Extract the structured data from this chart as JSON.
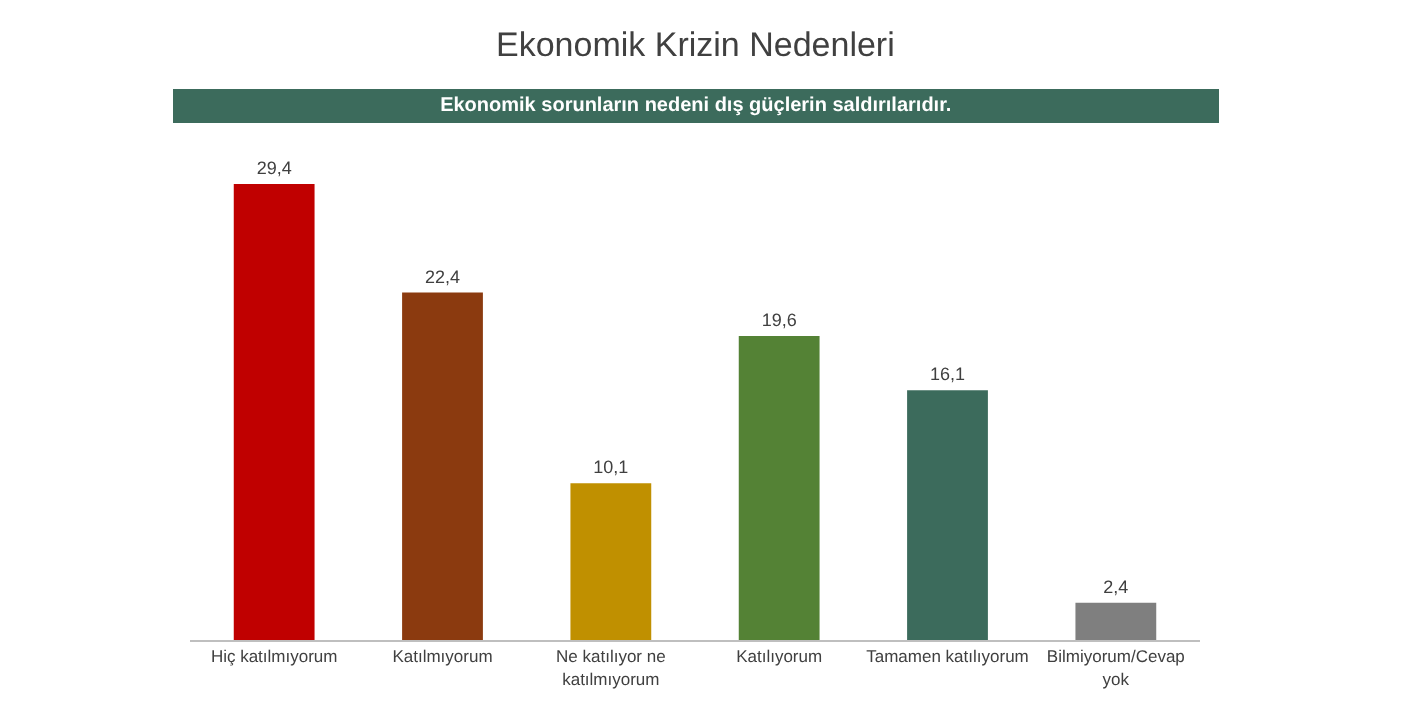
{
  "chart_data": {
    "type": "bar",
    "title": "Ekonomik Krizin Nedenleri",
    "subtitle": "Ekonomik sorunların nedeni dış güçlerin saldırılarıdır.",
    "categories": [
      "Hiç katılmıyorum",
      "Katılmıyorum",
      "Ne katılıyor ne katılmıyorum",
      "Katılıyorum",
      "Tamamen katılıyorum",
      "Bilmiyorum/Cevap yok"
    ],
    "values": [
      29.4,
      22.4,
      10.1,
      19.6,
      16.1,
      2.4
    ],
    "value_labels": [
      "29,4",
      "22,4",
      "10,1",
      "19,6",
      "16,1",
      "2,4"
    ],
    "colors": [
      "#c00000",
      "#8b3a0f",
      "#c09000",
      "#548235",
      "#3c6b5c",
      "#7f7f7f"
    ],
    "tick_labels": "x",
    "legend": false
  }
}
